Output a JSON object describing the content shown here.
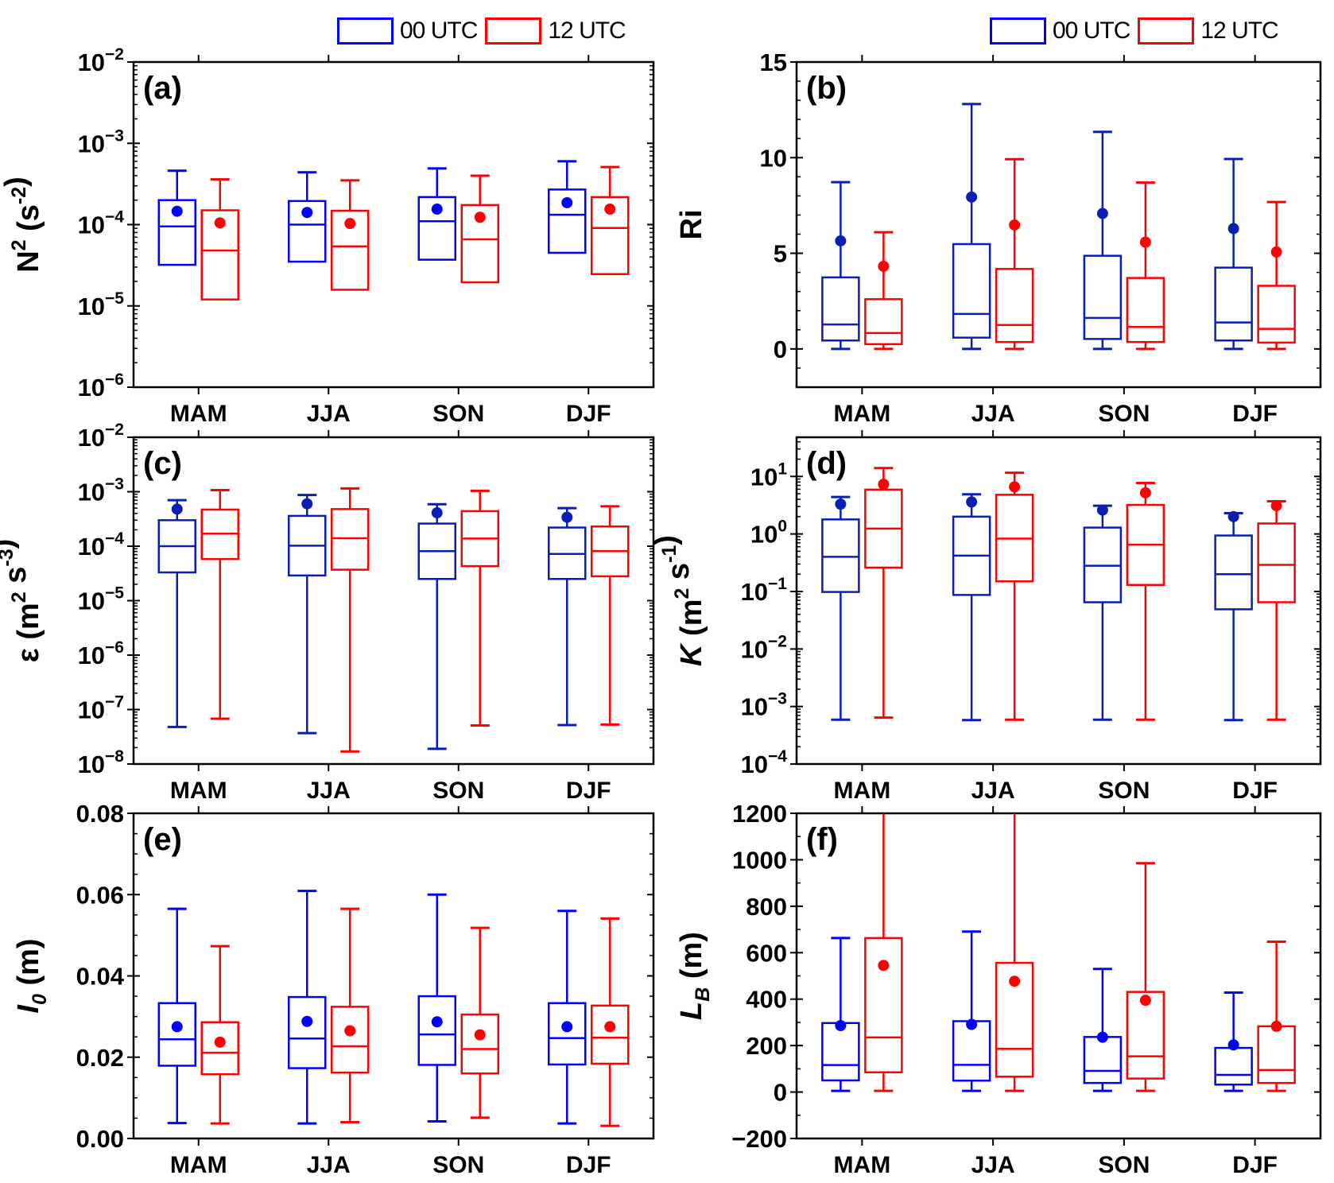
{
  "legend": {
    "items": [
      {
        "label": "00 UTC",
        "color": "#0000FF"
      },
      {
        "label": "12 UTC",
        "color": "#FF0000"
      }
    ]
  },
  "colors": {
    "blue_00utc": "#0000FF",
    "blue_00utc_dark": "#0A1EB4",
    "red_12utc": "#FF0000",
    "axis": "#000000"
  },
  "chart_data": [
    {
      "id": "a",
      "panel_label": "(a)",
      "type": "box",
      "scale": "log",
      "ylabel": "N² (s⁻²)",
      "ylabel_parts": {
        "base": "N",
        "sup": "2",
        "unit": " (s",
        "unit_sup": "-2",
        "tail": ")"
      },
      "ylim": [
        1e-06,
        0.01
      ],
      "yticks": [
        1e-06,
        1e-05,
        0.0001,
        0.001,
        0.01
      ],
      "ytick_labels": [
        {
          "b": "10",
          "e": "−6"
        },
        {
          "b": "10",
          "e": "−5"
        },
        {
          "b": "10",
          "e": "−4"
        },
        {
          "b": "10",
          "e": "−3"
        },
        {
          "b": "10",
          "e": "−2"
        }
      ],
      "categories": [
        "MAM",
        "JJA",
        "SON",
        "DJF"
      ],
      "series": [
        {
          "name": "00 UTC",
          "color": "#0000FF",
          "boxes": [
            {
              "whislo": 3.2e-05,
              "q1": 3.2e-05,
              "med": 9.5e-05,
              "q3": 0.0002,
              "whishi": 0.00046,
              "mean": 0.000146
            },
            {
              "whislo": 3.5e-05,
              "q1": 3.5e-05,
              "med": 0.0001,
              "q3": 0.000195,
              "whishi": 0.00044,
              "mean": 0.000141
            },
            {
              "whislo": 3.7e-05,
              "q1": 3.7e-05,
              "med": 0.00011,
              "q3": 0.000218,
              "whishi": 0.00049,
              "mean": 0.000155
            },
            {
              "whislo": 4.5e-05,
              "q1": 4.5e-05,
              "med": 0.000132,
              "q3": 0.00027,
              "whishi": 0.0006,
              "mean": 0.000186
            }
          ]
        },
        {
          "name": "12 UTC",
          "color": "#FF0000",
          "boxes": [
            {
              "whislo": 1.2e-05,
              "q1": 1.2e-05,
              "med": 4.8e-05,
              "q3": 0.00015,
              "whishi": 0.00036,
              "mean": 0.000105
            },
            {
              "whislo": 1.58e-05,
              "q1": 1.58e-05,
              "med": 5.4e-05,
              "q3": 0.000148,
              "whishi": 0.00035,
              "mean": 0.000103
            },
            {
              "whislo": 1.95e-05,
              "q1": 1.95e-05,
              "med": 6.6e-05,
              "q3": 0.000174,
              "whishi": 0.0004,
              "mean": 0.000123
            },
            {
              "whislo": 2.46e-05,
              "q1": 2.46e-05,
              "med": 9.1e-05,
              "q3": 0.000218,
              "whishi": 0.00051,
              "mean": 0.000155
            }
          ]
        }
      ]
    },
    {
      "id": "b",
      "panel_label": "(b)",
      "type": "box",
      "scale": "linear",
      "ylabel": "Ri",
      "ylabel_parts": {
        "base": "Ri"
      },
      "ylim": [
        -2,
        15
      ],
      "yticks": [
        0,
        5,
        10,
        15
      ],
      "ytick_labels": [
        "0",
        "5",
        "10",
        "15"
      ],
      "minor_step": 1,
      "categories": [
        "MAM",
        "JJA",
        "SON",
        "DJF"
      ],
      "series": [
        {
          "name": "00 UTC",
          "color": "#0A1EB4",
          "boxes": [
            {
              "whislo": 0,
              "q1": 0.44,
              "med": 1.28,
              "q3": 3.74,
              "whishi": 8.72,
              "mean": 5.65
            },
            {
              "whislo": 0,
              "q1": 0.59,
              "med": 1.83,
              "q3": 5.48,
              "whishi": 12.8,
              "mean": 7.94
            },
            {
              "whislo": 0,
              "q1": 0.52,
              "med": 1.62,
              "q3": 4.87,
              "whishi": 11.35,
              "mean": 7.08
            },
            {
              "whislo": 0,
              "q1": 0.44,
              "med": 1.38,
              "q3": 4.25,
              "whishi": 9.93,
              "mean": 6.29
            }
          ]
        },
        {
          "name": "12 UTC",
          "color": "#FF0000",
          "boxes": [
            {
              "whislo": 0,
              "q1": 0.25,
              "med": 0.83,
              "q3": 2.6,
              "whishi": 6.1,
              "mean": 4.32
            },
            {
              "whislo": 0,
              "q1": 0.36,
              "med": 1.25,
              "q3": 4.18,
              "whishi": 9.92,
              "mean": 6.48
            },
            {
              "whislo": 0,
              "q1": 0.36,
              "med": 1.15,
              "q3": 3.71,
              "whishi": 8.7,
              "mean": 5.58
            },
            {
              "whislo": 0,
              "q1": 0.33,
              "med": 1.05,
              "q3": 3.3,
              "whishi": 7.68,
              "mean": 5.07
            }
          ]
        }
      ]
    },
    {
      "id": "c",
      "panel_label": "(c)",
      "type": "box",
      "scale": "log",
      "ylabel": "ε (m² s⁻³)",
      "ylabel_parts": {
        "base": "ε",
        "unit": " (m",
        "unit_sup": "2",
        "mid": " s",
        "mid_sup": "-3",
        "tail": ")"
      },
      "ylim": [
        1e-08,
        0.01
      ],
      "yticks": [
        1e-08,
        1e-07,
        1e-06,
        1e-05,
        0.0001,
        0.001,
        0.01
      ],
      "ytick_labels": [
        {
          "b": "10",
          "e": "−8"
        },
        {
          "b": "10",
          "e": "−7"
        },
        {
          "b": "10",
          "e": "−6"
        },
        {
          "b": "10",
          "e": "−5"
        },
        {
          "b": "10",
          "e": "−4"
        },
        {
          "b": "10",
          "e": "−3"
        },
        {
          "b": "10",
          "e": "−2"
        }
      ],
      "categories": [
        "MAM",
        "JJA",
        "SON",
        "DJF"
      ],
      "series": [
        {
          "name": "00 UTC",
          "color": "#0A1EB4",
          "boxes": [
            {
              "whislo": 4.8e-08,
              "q1": 3.3e-05,
              "med": 0.0001,
              "q3": 0.0003,
              "whishi": 0.0007,
              "mean": 0.00048
            },
            {
              "whislo": 3.7e-08,
              "q1": 2.9e-05,
              "med": 0.000102,
              "q3": 0.00036,
              "whishi": 0.00087,
              "mean": 0.0006
            },
            {
              "whislo": 1.9e-08,
              "q1": 2.5e-05,
              "med": 8.1e-05,
              "q3": 0.00026,
              "whishi": 0.00059,
              "mean": 0.00041
            },
            {
              "whislo": 5.2e-08,
              "q1": 2.5e-05,
              "med": 7.2e-05,
              "q3": 0.00022,
              "whishi": 0.0005,
              "mean": 0.00034
            }
          ]
        },
        {
          "name": "12 UTC",
          "color": "#FF0000",
          "boxes": [
            {
              "whislo": 6.8e-08,
              "q1": 5.8e-05,
              "med": 0.00017,
              "q3": 0.00047,
              "whishi": 0.00107,
              "mean": null
            },
            {
              "whislo": 1.7e-08,
              "q1": 3.7e-05,
              "med": 0.00014,
              "q3": 0.00048,
              "whishi": 0.00115,
              "mean": null
            },
            {
              "whislo": 5.1e-08,
              "q1": 4.3e-05,
              "med": 0.000138,
              "q3": 0.00044,
              "whishi": 0.00104,
              "mean": null
            },
            {
              "whislo": 5.3e-08,
              "q1": 2.8e-05,
              "med": 8.1e-05,
              "q3": 0.00023,
              "whishi": 0.00054,
              "mean": null
            }
          ]
        }
      ]
    },
    {
      "id": "d",
      "panel_label": "(d)",
      "type": "box",
      "scale": "log",
      "ylabel": "K (m² s⁻¹)",
      "ylabel_parts": {
        "base": "K",
        "italic": true,
        "unit": " (m",
        "unit_sup": "2",
        "mid": " s",
        "mid_sup": "-1",
        "tail": ")"
      },
      "ylim": [
        0.0001,
        48
      ],
      "yticks": [
        0.0001,
        0.001,
        0.01,
        0.1,
        1.0,
        10.0
      ],
      "ytick_labels": [
        {
          "b": "10",
          "e": "−4"
        },
        {
          "b": "10",
          "e": "−3"
        },
        {
          "b": "10",
          "e": "−2"
        },
        {
          "b": "10",
          "e": "−1"
        },
        {
          "b": "10",
          "e": "0"
        },
        {
          "b": "10",
          "e": "1"
        }
      ],
      "categories": [
        "MAM",
        "JJA",
        "SON",
        "DJF"
      ],
      "series": [
        {
          "name": "00 UTC",
          "color": "#0A1EB4",
          "boxes": [
            {
              "whislo": 0.00059,
              "q1": 0.098,
              "med": 0.4,
              "q3": 1.79,
              "whishi": 4.4,
              "mean": 3.3
            },
            {
              "whislo": 0.00058,
              "q1": 0.087,
              "med": 0.42,
              "q3": 2.0,
              "whishi": 4.9,
              "mean": 3.6
            },
            {
              "whislo": 0.00059,
              "q1": 0.065,
              "med": 0.28,
              "q3": 1.29,
              "whishi": 3.1,
              "mean": 2.6
            },
            {
              "whislo": 0.00058,
              "q1": 0.049,
              "med": 0.2,
              "q3": 0.94,
              "whishi": 2.3,
              "mean": 2.0
            }
          ]
        },
        {
          "name": "12 UTC",
          "color": "#FF0000",
          "boxes": [
            {
              "whislo": 0.00064,
              "q1": 0.26,
              "med": 1.24,
              "q3": 5.9,
              "whishi": 14.0,
              "mean": 7.3
            },
            {
              "whislo": 0.00059,
              "q1": 0.15,
              "med": 0.83,
              "q3": 4.8,
              "whishi": 11.6,
              "mean": 6.6
            },
            {
              "whislo": 0.00059,
              "q1": 0.13,
              "med": 0.65,
              "q3": 3.2,
              "whishi": 7.7,
              "mean": 5.2
            },
            {
              "whislo": 0.00059,
              "q1": 0.065,
              "med": 0.29,
              "q3": 1.52,
              "whishi": 3.7,
              "mean": 3.1
            }
          ]
        }
      ]
    },
    {
      "id": "e",
      "panel_label": "(e)",
      "type": "box",
      "scale": "linear",
      "ylabel": "I₀ (m)",
      "ylabel_parts": {
        "base": "I",
        "italic": true,
        "sub": "0",
        "unit": " (m",
        "tail": ")"
      },
      "ylim": [
        0,
        0.08
      ],
      "yticks": [
        0,
        0.02,
        0.04,
        0.06,
        0.08
      ],
      "ytick_labels": [
        "0.00",
        "0.02",
        "0.04",
        "0.06",
        "0.08"
      ],
      "minor_step": 0.005,
      "categories": [
        "MAM",
        "JJA",
        "SON",
        "DJF"
      ],
      "series": [
        {
          "name": "00 UTC",
          "color": "#0000FF",
          "boxes": [
            {
              "whislo": 0.0038,
              "q1": 0.0179,
              "med": 0.0244,
              "q3": 0.0333,
              "whishi": 0.0565,
              "mean": 0.0275
            },
            {
              "whislo": 0.0037,
              "q1": 0.0173,
              "med": 0.0246,
              "q3": 0.0348,
              "whishi": 0.0609,
              "mean": 0.0288
            },
            {
              "whislo": 0.0042,
              "q1": 0.0181,
              "med": 0.0256,
              "q3": 0.035,
              "whishi": 0.06,
              "mean": 0.0287
            },
            {
              "whislo": 0.0037,
              "q1": 0.0182,
              "med": 0.0247,
              "q3": 0.0333,
              "whishi": 0.056,
              "mean": 0.0275
            }
          ]
        },
        {
          "name": "12 UTC",
          "color": "#FF0000",
          "boxes": [
            {
              "whislo": 0.0037,
              "q1": 0.0158,
              "med": 0.0211,
              "q3": 0.0286,
              "whishi": 0.0473,
              "mean": 0.0237
            },
            {
              "whislo": 0.004,
              "q1": 0.0162,
              "med": 0.0227,
              "q3": 0.0324,
              "whishi": 0.0565,
              "mean": 0.0265
            },
            {
              "whislo": 0.0051,
              "q1": 0.016,
              "med": 0.022,
              "q3": 0.0305,
              "whishi": 0.0518,
              "mean": 0.0255
            },
            {
              "whislo": 0.0031,
              "q1": 0.0184,
              "med": 0.0248,
              "q3": 0.0327,
              "whishi": 0.0541,
              "mean": 0.0275
            }
          ]
        }
      ]
    },
    {
      "id": "f",
      "panel_label": "(f)",
      "type": "box",
      "scale": "linear",
      "ylabel": "L_B (m)",
      "ylabel_parts": {
        "base": "L",
        "italic": true,
        "sub": "B",
        "unit": " (m",
        "tail": ")"
      },
      "ylim": [
        -200,
        1200
      ],
      "yticks": [
        -200,
        0,
        200,
        400,
        600,
        800,
        1000,
        1200
      ],
      "ytick_labels": [
        "−200",
        "0",
        "200",
        "400",
        "600",
        "800",
        "1000",
        "1200"
      ],
      "minor_step": 100,
      "categories": [
        "MAM",
        "JJA",
        "SON",
        "DJF"
      ],
      "series": [
        {
          "name": "00 UTC",
          "color": "#0000FF",
          "boxes": [
            {
              "whislo": 5,
              "q1": 50,
              "med": 116,
              "q3": 297,
              "whishi": 663,
              "mean": 286
            },
            {
              "whislo": 5,
              "q1": 49,
              "med": 117,
              "q3": 305,
              "whishi": 691,
              "mean": 291
            },
            {
              "whislo": 5,
              "q1": 39,
              "med": 91,
              "q3": 237,
              "whishi": 530,
              "mean": 236
            },
            {
              "whislo": 5,
              "q1": 32,
              "med": 74,
              "q3": 190,
              "whishi": 428,
              "mean": 203
            }
          ]
        },
        {
          "name": "12 UTC",
          "color": "#FF0000",
          "boxes": [
            {
              "whislo": 5,
              "q1": 85,
              "med": 235,
              "q3": 663,
              "whishi": null,
              "whishi_clipped": true,
              "mean": 545
            },
            {
              "whislo": 5,
              "q1": 66,
              "med": 186,
              "q3": 556,
              "whishi": null,
              "whishi_clipped": true,
              "mean": 477
            },
            {
              "whislo": 5,
              "q1": 58,
              "med": 154,
              "q3": 431,
              "whishi": 985,
              "mean": 395
            },
            {
              "whislo": 5,
              "q1": 39,
              "med": 95,
              "q3": 283,
              "whishi": 647,
              "mean": 283
            }
          ]
        }
      ]
    }
  ]
}
